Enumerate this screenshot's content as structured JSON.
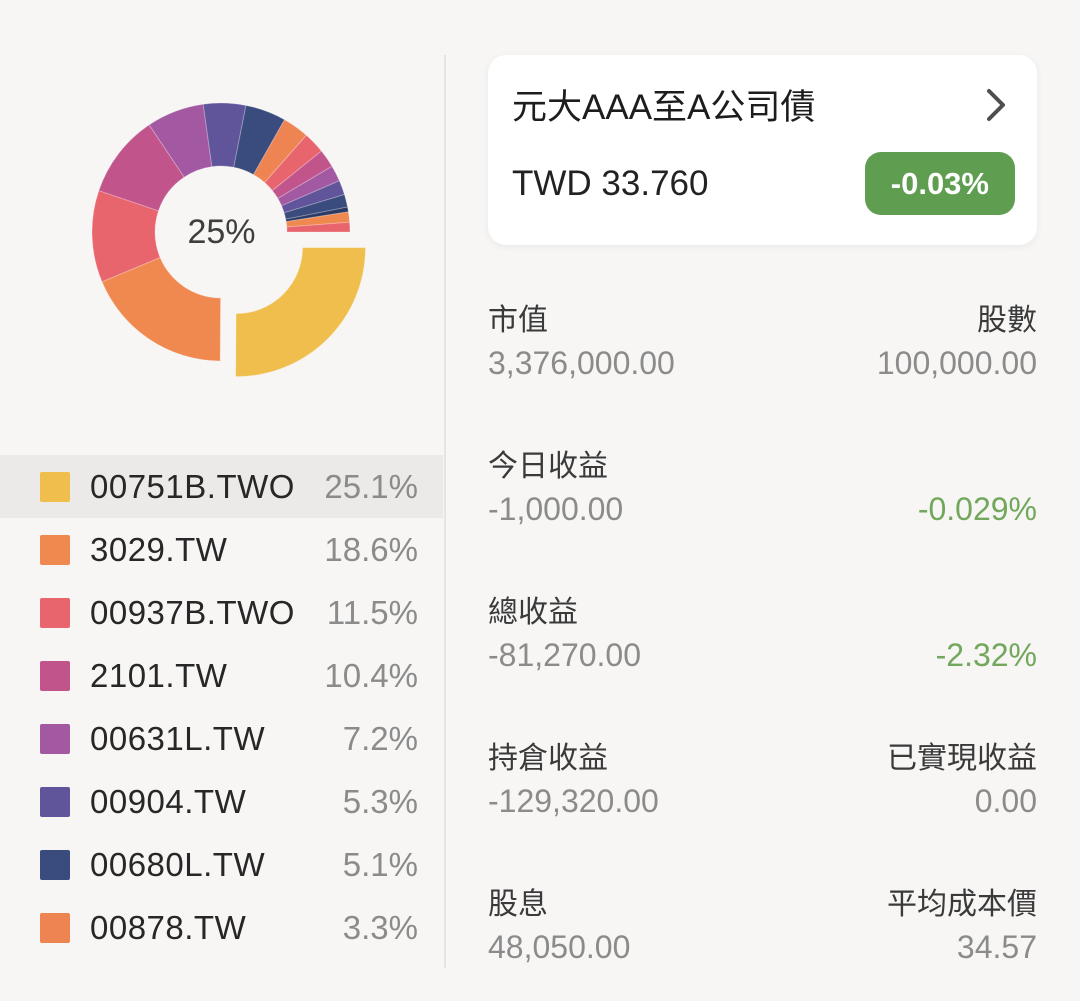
{
  "chart_data": {
    "type": "pie",
    "subtype": "donut",
    "center_label": "25%",
    "start_angle_deg": 0,
    "direction": "clockwise",
    "legend_position": "bottom-left",
    "selected_slice": "00751B.TWO",
    "series": [
      {
        "label": "00751B.TWO",
        "percent": 25.1,
        "color": "#EFBE4D",
        "exploded": true,
        "in_legend": true
      },
      {
        "label": "3029.TW",
        "percent": 18.6,
        "color": "#F0894F",
        "exploded": false,
        "in_legend": true
      },
      {
        "label": "00937B.TWO",
        "percent": 11.5,
        "color": "#E8656E",
        "exploded": false,
        "in_legend": true
      },
      {
        "label": "2101.TW",
        "percent": 10.4,
        "color": "#C2548C",
        "exploded": false,
        "in_legend": true
      },
      {
        "label": "00631L.TW",
        "percent": 7.2,
        "color": "#A259A1",
        "exploded": false,
        "in_legend": true
      },
      {
        "label": "00904.TW",
        "percent": 5.3,
        "color": "#60549B",
        "exploded": false,
        "in_legend": true
      },
      {
        "label": "00680L.TW",
        "percent": 5.1,
        "color": "#3A4B7D",
        "exploded": false,
        "in_legend": true
      },
      {
        "label": "00878.TW",
        "percent": 3.3,
        "color": "#ED8451",
        "exploded": false,
        "in_legend": true
      },
      {
        "label": "",
        "percent": 2.7,
        "color": "#E8656E",
        "exploded": false,
        "in_legend": false
      },
      {
        "label": "",
        "percent": 2.3,
        "color": "#C2548C",
        "exploded": false,
        "in_legend": false
      },
      {
        "label": "",
        "percent": 2.0,
        "color": "#A259A1",
        "exploded": false,
        "in_legend": false
      },
      {
        "label": "",
        "percent": 1.8,
        "color": "#60549B",
        "exploded": false,
        "in_legend": false
      },
      {
        "label": "",
        "percent": 1.6,
        "color": "#3A4B7D",
        "exploded": false,
        "in_legend": false
      },
      {
        "label": "",
        "percent": 0.6,
        "color": "#2E3A66",
        "exploded": false,
        "in_legend": false
      },
      {
        "label": "",
        "percent": 1.3,
        "color": "#F0894F",
        "exploded": false,
        "in_legend": false
      },
      {
        "label": "",
        "percent": 1.2,
        "color": "#E8656E",
        "exploded": false,
        "in_legend": false
      }
    ]
  },
  "legend": {
    "selected_index": 0,
    "percent_suffix": "%"
  },
  "holding": {
    "name": "元大AAA至A公司債",
    "price": "TWD 33.760",
    "change_percent": "-0.03%",
    "change_badge_color": "#5F9E51"
  },
  "stats": {
    "green_color": "#72A75C",
    "sections": [
      {
        "left": {
          "label": "市值",
          "value": "3,376,000.00",
          "green": false
        },
        "right": {
          "label": "股數",
          "value": "100,000.00",
          "green": false
        }
      },
      {
        "left": {
          "label": "今日收益",
          "value": "-1,000.00",
          "green": false
        },
        "right": {
          "label": "",
          "value": "-0.029%",
          "green": true
        }
      },
      {
        "left": {
          "label": "總收益",
          "value": "-81,270.00",
          "green": false
        },
        "right": {
          "label": "",
          "value": "-2.32%",
          "green": true
        }
      },
      {
        "left": {
          "label": "持倉收益",
          "value": "-129,320.00",
          "green": false
        },
        "right": {
          "label": "已實現收益",
          "value": "0.00",
          "green": false
        }
      },
      {
        "left": {
          "label": "股息",
          "value": "48,050.00",
          "green": false
        },
        "right": {
          "label": "平均成本價",
          "value": "34.57",
          "green": false
        }
      }
    ]
  }
}
